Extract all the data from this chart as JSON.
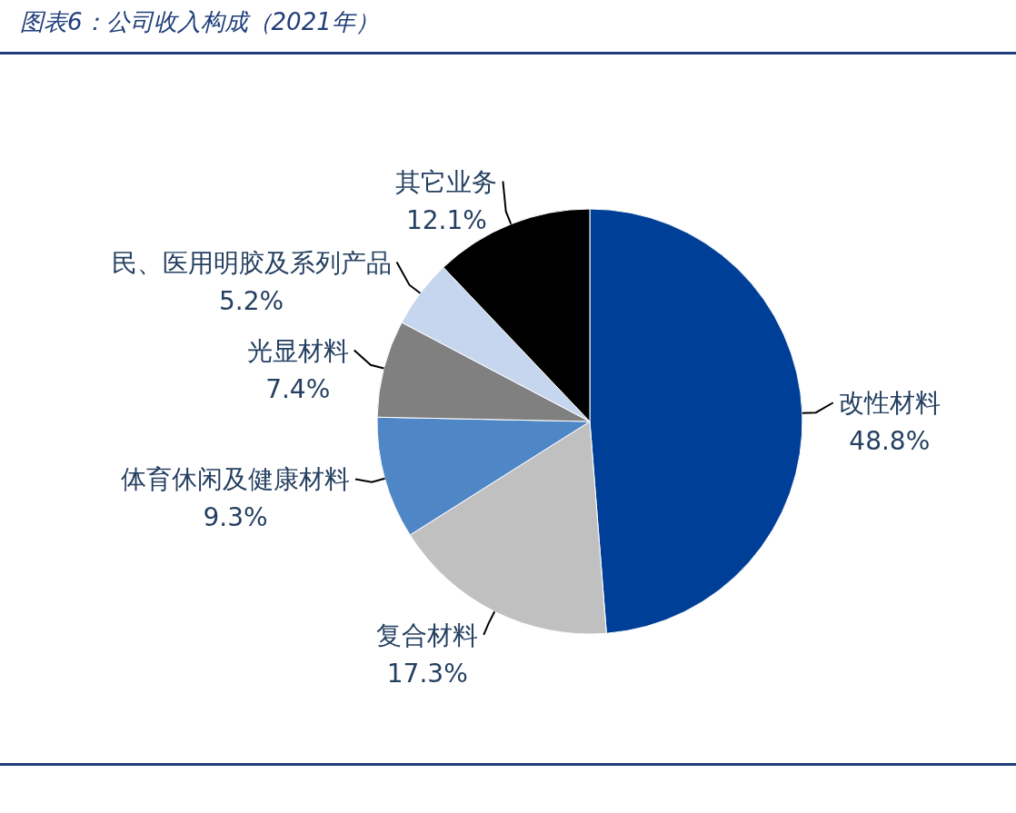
{
  "chart_data": {
    "type": "pie",
    "title": "图表6：公司收入构成（2021年）",
    "categories": [
      "改性材料",
      "复合材料",
      "体育休闲及健康材料",
      "光显材料",
      "民、医用明胶及系列产品",
      "其它业务"
    ],
    "values": [
      48.8,
      17.3,
      9.3,
      7.4,
      5.2,
      12.1
    ],
    "value_labels": [
      "48.8%",
      "17.3%",
      "9.3%",
      "7.4%",
      "5.2%",
      "12.1%"
    ],
    "colors": [
      "#003f97",
      "#c0c0c0",
      "#4f86c6",
      "#808080",
      "#c5d6ee",
      "#000000"
    ]
  }
}
